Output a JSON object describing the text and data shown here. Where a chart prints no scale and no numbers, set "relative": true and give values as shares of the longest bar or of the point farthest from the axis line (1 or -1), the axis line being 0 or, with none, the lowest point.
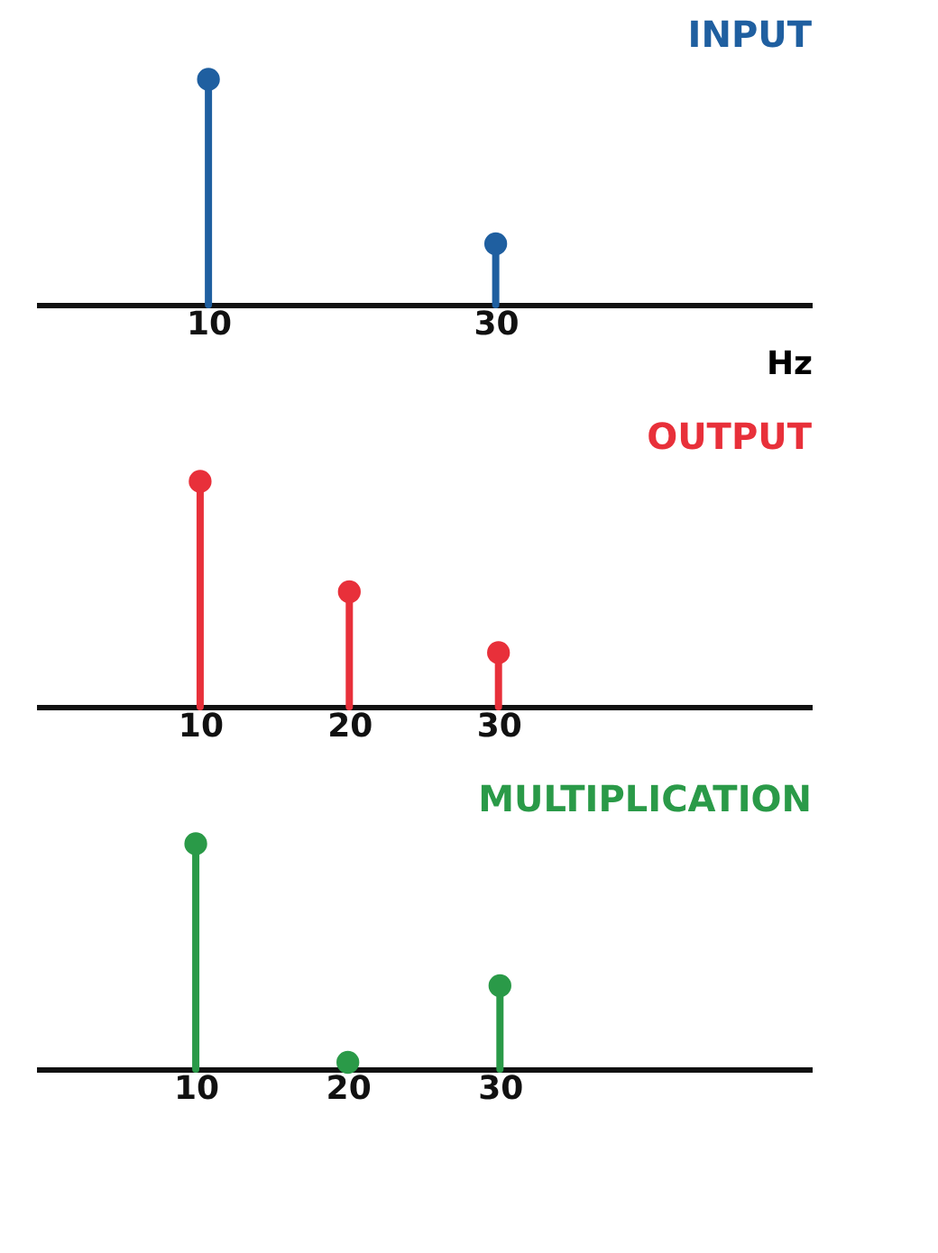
{
  "chart_data": [
    {
      "type": "lollipop",
      "title": "INPUT",
      "xlabel": "Hz",
      "relative": true,
      "marker": "circle",
      "tick_labels": "x",
      "xlim": [
        -2,
        52
      ],
      "xticks": [
        10,
        30
      ],
      "x": [
        10,
        30
      ],
      "series": [
        {
          "color": "#1f5fa0",
          "values": [
            1,
            0.27
          ]
        }
      ]
    },
    {
      "type": "lollipop",
      "title": "OUTPUT",
      "relative": true,
      "marker": "circle",
      "tick_labels": "x",
      "xlim": [
        -1,
        51
      ],
      "xticks": [
        10,
        20,
        30
      ],
      "x": [
        10,
        20,
        30
      ],
      "series": [
        {
          "color": "#e8303a",
          "values": [
            1,
            0.51,
            0.24
          ]
        }
      ]
    },
    {
      "type": "lollipop",
      "title": "MULTIPLICATION",
      "relative": true,
      "marker": "circle",
      "tick_labels": "x",
      "xlim": [
        -0.5,
        50.5
      ],
      "xticks": [
        10,
        20,
        30
      ],
      "x": [
        10,
        20,
        30
      ],
      "series": [
        {
          "color": "#2a9a48",
          "values": [
            1,
            0.03,
            0.37
          ]
        }
      ]
    }
  ]
}
